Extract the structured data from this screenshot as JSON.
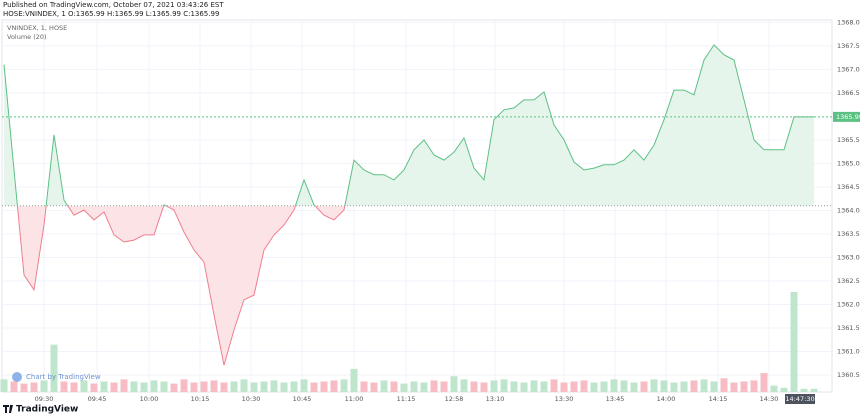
{
  "header": {
    "published": "Published on TradingView.com, October 07, 2021 03:43:26 EST",
    "symbol_info": "HOSE:VNINDEX, 1 O:1365.99 H:1365.99 L:1365.99 C:1365.99"
  },
  "chart_data": {
    "type": "line",
    "legend": [
      "VNINDEX, 1, HOSE",
      "Volume (20)"
    ],
    "watermark": "Chart by TradingView",
    "logo": "TradingView",
    "crosshair_time": {
      "value": 79.6,
      "label": "14:47:30"
    },
    "baseline": 1364.1,
    "xlim": [
      -0.2,
      82.8
    ],
    "ylim": [
      1360.14,
      1368.05
    ],
    "grid": true,
    "xticks": [
      {
        "value": 4.0,
        "label": "09:30"
      },
      {
        "value": 9.3,
        "label": "09:45"
      },
      {
        "value": 14.5,
        "label": "10:00"
      },
      {
        "value": 19.6,
        "label": "10:15"
      },
      {
        "value": 24.7,
        "label": "10:30"
      },
      {
        "value": 29.8,
        "label": "10:45"
      },
      {
        "value": 35.0,
        "label": "11:00"
      },
      {
        "value": 40.2,
        "label": "11:15"
      },
      {
        "value": 45.0,
        "label": "12:58"
      },
      {
        "value": 49.1,
        "label": "13:10"
      },
      {
        "value": 56.0,
        "label": "13:30"
      },
      {
        "value": 61.1,
        "label": "13:45"
      },
      {
        "value": 66.2,
        "label": "14:00"
      },
      {
        "value": 71.4,
        "label": "14:15"
      },
      {
        "value": 76.5,
        "label": "14:30"
      }
    ],
    "yticks": [
      {
        "value": 1360.5,
        "label": "1360.50"
      },
      {
        "value": 1361,
        "label": "1361.00"
      },
      {
        "value": 1361.5,
        "label": "1361.50"
      },
      {
        "value": 1362,
        "label": "1362.00"
      },
      {
        "value": 1362.5,
        "label": "1362.50"
      },
      {
        "value": 1363,
        "label": "1363.00"
      },
      {
        "value": 1363.5,
        "label": "1363.50"
      },
      {
        "value": 1364,
        "label": "1364.00"
      },
      {
        "value": 1364.5,
        "label": "1364.50"
      },
      {
        "value": 1365,
        "label": "1365.00"
      },
      {
        "value": 1365.5,
        "label": "1365.50"
      },
      {
        "value": 1366.5,
        "label": "1366.50"
      },
      {
        "value": 1367,
        "label": "1367.00"
      },
      {
        "value": 1367.5,
        "label": "1367.50"
      },
      {
        "value": 1368,
        "label": "1368.00"
      }
    ],
    "series": [
      {
        "name": "VNINDEX",
        "color_up": "#5cc083",
        "color_down": "#f07f8e",
        "fill_up": "#e6f5eb",
        "fill_down": "#fbe3e6",
        "values": [
          1367.1,
          1364.86,
          1362.63,
          1362.31,
          1363.69,
          1365.61,
          1364.22,
          1363.9,
          1364.01,
          1363.8,
          1363.97,
          1363.48,
          1363.33,
          1363.37,
          1363.48,
          1363.48,
          1364.12,
          1364.01,
          1363.54,
          1363.16,
          1362.9,
          1361.78,
          1360.71,
          1361.46,
          1362.1,
          1362.2,
          1363.16,
          1363.48,
          1363.69,
          1364.01,
          1364.65,
          1364.12,
          1363.9,
          1363.8,
          1364.01,
          1365.07,
          1364.86,
          1364.76,
          1364.76,
          1364.65,
          1364.86,
          1365.29,
          1365.5,
          1365.18,
          1365.07,
          1365.24,
          1365.54,
          1364.9,
          1364.65,
          1365.93,
          1366.14,
          1366.18,
          1366.35,
          1366.35,
          1366.52,
          1365.82,
          1365.5,
          1365.03,
          1364.86,
          1364.9,
          1364.97,
          1364.97,
          1365.07,
          1365.29,
          1365.07,
          1365.39,
          1365.93,
          1366.56,
          1366.56,
          1366.46,
          1367.2,
          1367.52,
          1367.31,
          1367.2,
          1366.35,
          1365.5,
          1365.29,
          1365.29,
          1365.29,
          1365.99,
          1365.99,
          1365.99
        ]
      },
      {
        "name": "Volume",
        "color_up": "#bfe5cc",
        "color_down": "#f7bcc4",
        "values": [
          12,
          10,
          8,
          9,
          11,
          45,
          10,
          9,
          11,
          8,
          10,
          9,
          12,
          10,
          9,
          11,
          10,
          8,
          12,
          9,
          10,
          11,
          9,
          10,
          12,
          9,
          10,
          11,
          9,
          10,
          12,
          9,
          10,
          11,
          12,
          22,
          10,
          9,
          11,
          10,
          8,
          10,
          9,
          11,
          10,
          15,
          12,
          10,
          9,
          11,
          12,
          10,
          9,
          11,
          10,
          12,
          9,
          10,
          11,
          9,
          10,
          12,
          11,
          9,
          10,
          12,
          11,
          9,
          10,
          11,
          12,
          10,
          13,
          9,
          10,
          11,
          18,
          6,
          4,
          95,
          3,
          3
        ]
      }
    ]
  }
}
